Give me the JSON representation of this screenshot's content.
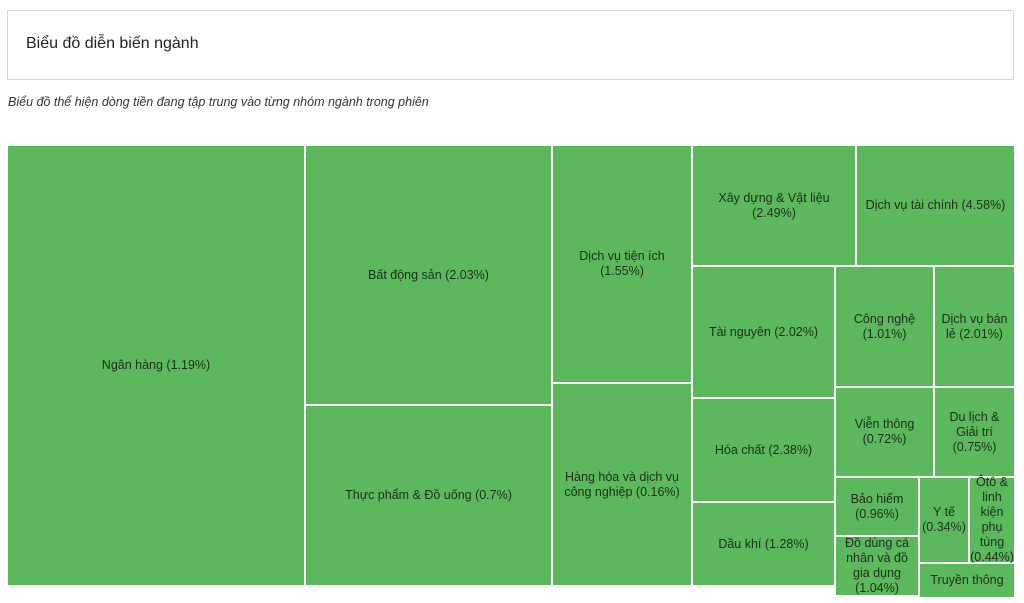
{
  "header": {
    "title": "Biểu đồ diễn biến ngành"
  },
  "subtitle": "Biểu đồ thể hiện dòng tiền đang tập trung vào từng nhóm ngành trong phiên",
  "colors": {
    "cell_fill": "#5cb85c",
    "cell_border": "#ffffff"
  },
  "chart_data": {
    "type": "treemap",
    "title": "Biểu đồ diễn biến ngành",
    "items": [
      {
        "label": "Ngân hàng (1.19%)",
        "name": "Ngân hàng",
        "change": 1.19
      },
      {
        "label": "Bất động sản (2.03%)",
        "name": "Bất động sản",
        "change": 2.03
      },
      {
        "label": "Thực phẩm & Đồ uống (0.7%)",
        "name": "Thực phẩm & Đồ uống",
        "change": 0.7
      },
      {
        "label": "Dịch vụ tiện ích (1.55%)",
        "name": "Dịch vụ tiện ích",
        "change": 1.55
      },
      {
        "label": "Hàng hóa và dịch vụ công nghiệp (0.16%)",
        "name": "Hàng hóa và dịch vụ công nghiệp",
        "change": 0.16
      },
      {
        "label": "Xây dựng & Vật liệu (2.49%)",
        "name": "Xây dựng & Vật liệu",
        "change": 2.49
      },
      {
        "label": "Dịch vụ tài chính (4.58%)",
        "name": "Dịch vụ tài chính",
        "change": 4.58
      },
      {
        "label": "Tài nguyên (2.02%)",
        "name": "Tài nguyên",
        "change": 2.02
      },
      {
        "label": "Hóa chất (2.38%)",
        "name": "Hóa chất",
        "change": 2.38
      },
      {
        "label": "Dầu khí (1.28%)",
        "name": "Dầu khí",
        "change": 1.28
      },
      {
        "label": "Công nghệ (1.01%)",
        "name": "Công nghệ",
        "change": 1.01
      },
      {
        "label": "Dịch vụ bán lẻ (2.01%)",
        "name": "Dịch vụ bán lẻ",
        "change": 2.01
      },
      {
        "label": "Viễn thông (0.72%)",
        "name": "Viễn thông",
        "change": 0.72
      },
      {
        "label": "Du lịch & Giải trí (0.75%)",
        "name": "Du lịch & Giải trí",
        "change": 0.75
      },
      {
        "label": "Bảo hiểm (0.96%)",
        "name": "Bảo hiểm",
        "change": 0.96
      },
      {
        "label": "Y tế (0.34%)",
        "name": "Y tế",
        "change": 0.34
      },
      {
        "label": "Ôtô & linh kiện phụ tùng (0.44%)",
        "name": "Ôtô & linh kiện phụ tùng",
        "change": 0.44
      },
      {
        "label": "Đồ dùng cá nhân và đồ gia dụng (1.04%)",
        "name": "Đồ dùng cá nhân và đồ gia dụng",
        "change": 1.04
      },
      {
        "label": "Truyền thông",
        "name": "Truyền thông",
        "change": null
      }
    ]
  }
}
